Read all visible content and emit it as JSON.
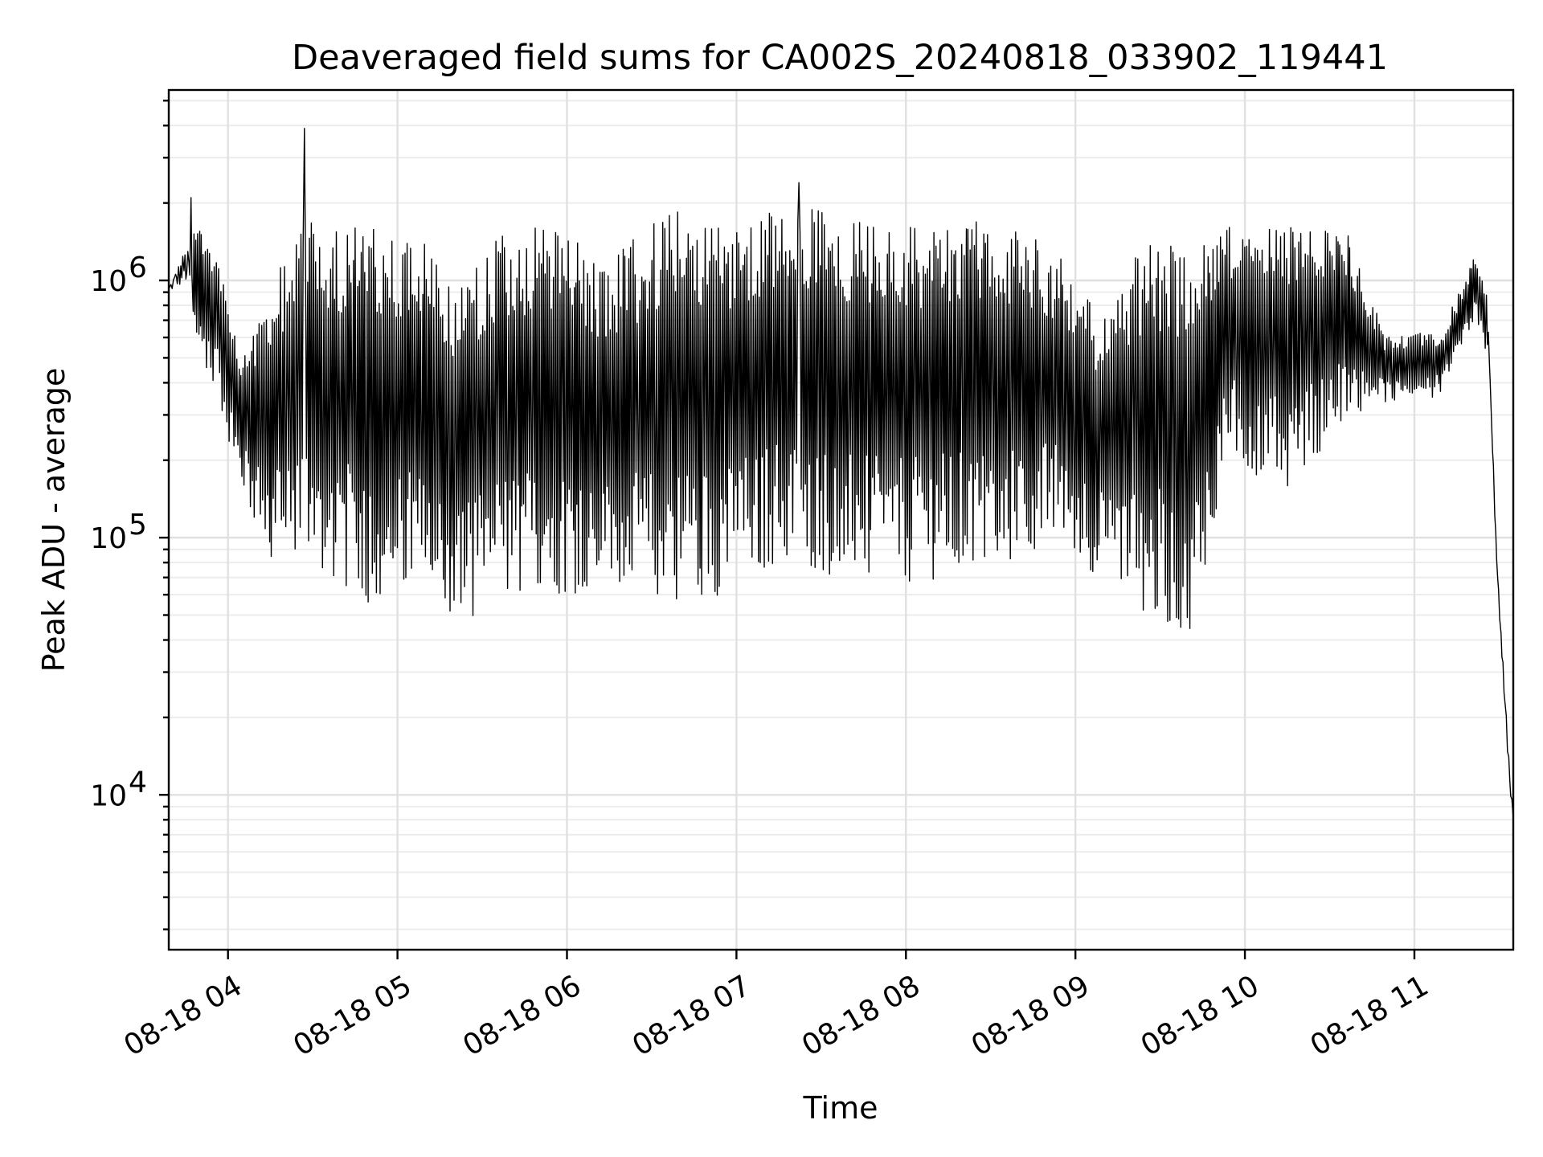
{
  "chart_data": {
    "type": "line",
    "title": "Deaveraged field sums for CA002S_20240818_033902_119441",
    "xlabel": "Time",
    "ylabel": "Peak ADU - average",
    "yscale": "log",
    "grid": true,
    "xlim": [
      "2024-08-18 03:39:02",
      "2024-08-18 11:35:00"
    ],
    "ylim": [
      2500,
      5500000
    ],
    "x_ticks": [
      {
        "time": "2024-08-18 04:00",
        "label": "08-18 04"
      },
      {
        "time": "2024-08-18 05:00",
        "label": "08-18 05"
      },
      {
        "time": "2024-08-18 06:00",
        "label": "08-18 06"
      },
      {
        "time": "2024-08-18 07:00",
        "label": "08-18 07"
      },
      {
        "time": "2024-08-18 08:00",
        "label": "08-18 08"
      },
      {
        "time": "2024-08-18 09:00",
        "label": "08-18 09"
      },
      {
        "time": "2024-08-18 10:00",
        "label": "08-18 10"
      },
      {
        "time": "2024-08-18 11:00",
        "label": "08-18 11"
      }
    ],
    "y_ticks": [
      {
        "value": 10000,
        "base": "10",
        "exp": "4"
      },
      {
        "value": 100000,
        "base": "10",
        "exp": "5"
      },
      {
        "value": 1000000,
        "base": "10",
        "exp": "6"
      }
    ],
    "series_color": "#000000",
    "envelope": [
      {
        "time": "2024-08-18 03:39",
        "low": 850000,
        "high": 1000000
      },
      {
        "time": "2024-08-18 03:45",
        "low": 650000,
        "high": 2000000
      },
      {
        "time": "2024-08-18 03:55",
        "low": 400000,
        "high": 1400000
      },
      {
        "time": "2024-08-18 04:05",
        "low": 150000,
        "high": 500000
      },
      {
        "time": "2024-08-18 04:15",
        "low": 75000,
        "high": 900000
      },
      {
        "time": "2024-08-18 04:25",
        "low": 90000,
        "high": 1800000
      },
      {
        "time": "2024-08-18 04:35",
        "low": 70000,
        "high": 1700000
      },
      {
        "time": "2024-08-18 04:50",
        "low": 55000,
        "high": 1600000
      },
      {
        "time": "2024-08-18 05:05",
        "low": 60000,
        "high": 1600000
      },
      {
        "time": "2024-08-18 05:20",
        "low": 45000,
        "high": 1000000
      },
      {
        "time": "2024-08-18 05:35",
        "low": 55000,
        "high": 1600000
      },
      {
        "time": "2024-08-18 05:55",
        "low": 60000,
        "high": 1600000
      },
      {
        "time": "2024-08-18 06:15",
        "low": 60000,
        "high": 1200000
      },
      {
        "time": "2024-08-18 06:35",
        "low": 55000,
        "high": 1900000
      },
      {
        "time": "2024-08-18 06:55",
        "low": 60000,
        "high": 1700000
      },
      {
        "time": "2024-08-18 07:15",
        "low": 80000,
        "high": 2000000
      },
      {
        "time": "2024-08-18 07:35",
        "low": 70000,
        "high": 1900000
      },
      {
        "time": "2024-08-18 07:55",
        "low": 65000,
        "high": 1700000
      },
      {
        "time": "2024-08-18 08:15",
        "low": 70000,
        "high": 1800000
      },
      {
        "time": "2024-08-18 08:35",
        "low": 75000,
        "high": 1700000
      },
      {
        "time": "2024-08-18 08:55",
        "low": 100000,
        "high": 1300000
      },
      {
        "time": "2024-08-18 09:10",
        "low": 65000,
        "high": 700000
      },
      {
        "time": "2024-08-18 09:25",
        "low": 50000,
        "high": 1500000
      },
      {
        "time": "2024-08-18 09:40",
        "low": 42000,
        "high": 1400000
      },
      {
        "time": "2024-08-18 09:55",
        "low": 200000,
        "high": 1700000
      },
      {
        "time": "2024-08-18 10:15",
        "low": 150000,
        "high": 1600000
      },
      {
        "time": "2024-08-18 10:35",
        "low": 280000,
        "high": 1700000
      },
      {
        "time": "2024-08-18 10:50",
        "low": 330000,
        "high": 600000
      },
      {
        "time": "2024-08-18 11:10",
        "low": 350000,
        "high": 650000
      },
      {
        "time": "2024-08-18 11:22",
        "low": 700000,
        "high": 1300000
      },
      {
        "time": "2024-08-18 11:26",
        "low": 500000,
        "high": 900000
      },
      {
        "time": "2024-08-18 11:28",
        "low": 120000,
        "high": 250000
      },
      {
        "time": "2024-08-18 11:30",
        "low": 40000,
        "high": 70000
      },
      {
        "time": "2024-08-18 11:33",
        "low": 12000,
        "high": 20000
      },
      {
        "time": "2024-08-18 11:35",
        "low": 5000,
        "high": 11000
      }
    ],
    "spikes": [
      {
        "time": "2024-08-18 04:27",
        "value": 3900000
      },
      {
        "time": "2024-08-18 07:22",
        "value": 2400000
      },
      {
        "time": "2024-08-18 03:47",
        "value": 2100000
      }
    ]
  }
}
